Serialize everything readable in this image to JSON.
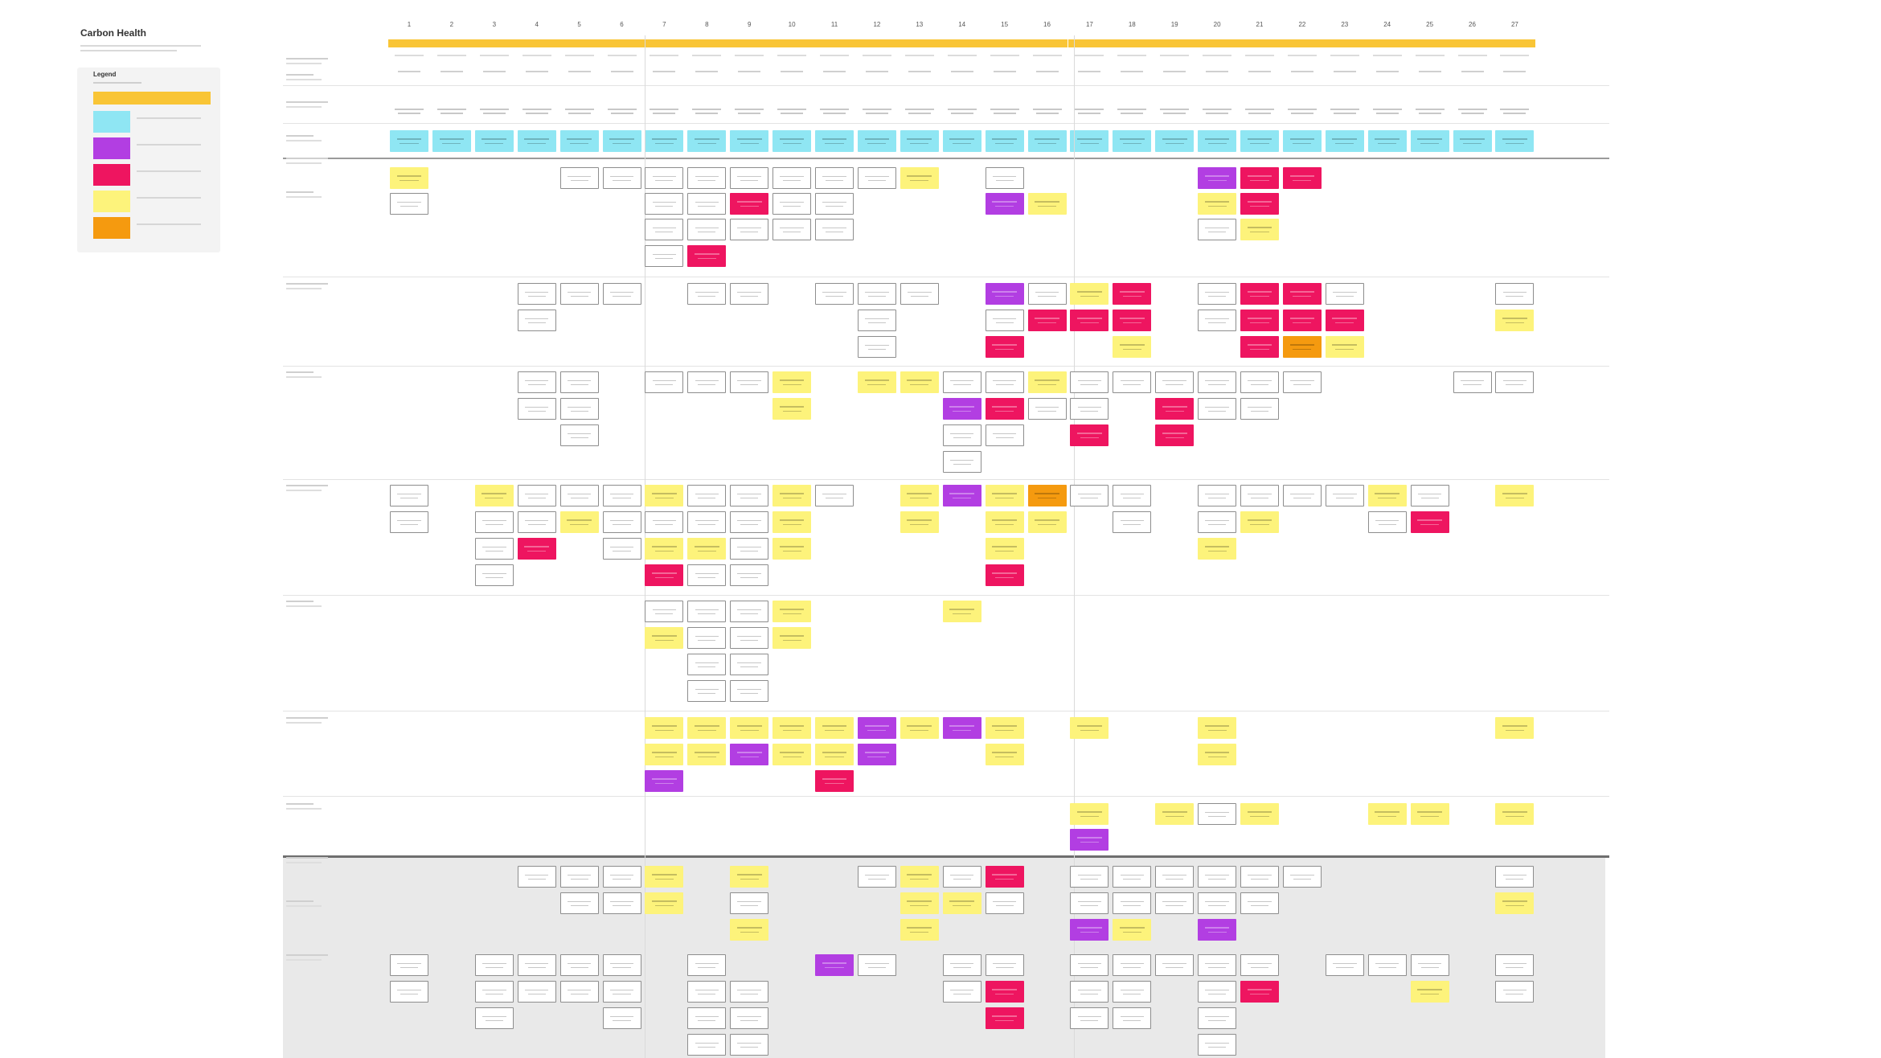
{
  "board": {
    "title": "Carbon Health",
    "legend": {
      "heading": "Legend",
      "items": [
        {
          "name": "phase-marker",
          "color": "#f9c536"
        },
        {
          "name": "step",
          "color": "#8fe6f3"
        },
        {
          "name": "question",
          "color": "#b23ee2"
        },
        {
          "name": "pain-point",
          "color": "#ee1560"
        },
        {
          "name": "opportunity",
          "color": "#fdf37b"
        },
        {
          "name": "idea",
          "color": "#f59a0f"
        }
      ]
    },
    "columns": [
      "1",
      "2",
      "3",
      "4",
      "5",
      "6",
      "7",
      "8",
      "9",
      "10",
      "11",
      "12",
      "13",
      "14",
      "15",
      "16",
      "17",
      "18",
      "19",
      "20",
      "21",
      "22",
      "23",
      "24",
      "25",
      "26",
      "27"
    ],
    "phases": [
      {
        "from": 1,
        "to": 6
      },
      {
        "from": 7,
        "to": 16
      },
      {
        "from": 17,
        "to": 27
      }
    ],
    "colors": {
      "white": "#ffffff",
      "cyan": "#8fe6f3",
      "yellow": "#fdf37b",
      "purple": "#b23ee2",
      "pink": "#ee1560",
      "orange": "#f59a0f",
      "phase": "#f9c536"
    }
  },
  "cards": [
    {
      "c": 1,
      "r": "a",
      "t": "y"
    },
    {
      "c": 1,
      "r": "a2",
      "t": "w"
    },
    {
      "c": 5,
      "r": "a",
      "t": "w"
    },
    {
      "c": 6,
      "r": "a",
      "t": "w"
    },
    {
      "c": 7,
      "r": "a",
      "t": "w"
    },
    {
      "c": 7,
      "r": "a2",
      "t": "w"
    },
    {
      "c": 7,
      "r": "a3",
      "t": "w"
    },
    {
      "c": 7,
      "r": "a4",
      "t": "w"
    },
    {
      "c": 8,
      "r": "a",
      "t": "w"
    },
    {
      "c": 8,
      "r": "a2",
      "t": "w"
    },
    {
      "c": 8,
      "r": "a3",
      "t": "w"
    },
    {
      "c": 8,
      "r": "a4",
      "t": "p"
    },
    {
      "c": 9,
      "r": "a",
      "t": "w"
    },
    {
      "c": 9,
      "r": "a2",
      "t": "p"
    },
    {
      "c": 9,
      "r": "a3",
      "t": "w"
    },
    {
      "c": 10,
      "r": "a",
      "t": "w"
    },
    {
      "c": 10,
      "r": "a2",
      "t": "w"
    },
    {
      "c": 10,
      "r": "a3",
      "t": "w"
    },
    {
      "c": 11,
      "r": "a",
      "t": "w"
    },
    {
      "c": 11,
      "r": "a2",
      "t": "w"
    },
    {
      "c": 11,
      "r": "a3",
      "t": "w"
    },
    {
      "c": 12,
      "r": "a",
      "t": "w"
    },
    {
      "c": 13,
      "r": "a",
      "t": "y"
    },
    {
      "c": 15,
      "r": "a",
      "t": "w"
    },
    {
      "c": 15,
      "r": "a2",
      "t": "u"
    },
    {
      "c": 16,
      "r": "a2",
      "t": "y"
    },
    {
      "c": 20,
      "r": "a",
      "t": "u"
    },
    {
      "c": 20,
      "r": "a2",
      "t": "y"
    },
    {
      "c": 20,
      "r": "a3",
      "t": "w"
    },
    {
      "c": 21,
      "r": "a",
      "t": "p"
    },
    {
      "c": 21,
      "r": "a2",
      "t": "p"
    },
    {
      "c": 21,
      "r": "a3",
      "t": "y"
    },
    {
      "c": 22,
      "r": "a",
      "t": "p"
    },
    {
      "c": 4,
      "r": "b",
      "t": "w"
    },
    {
      "c": 4,
      "r": "b2",
      "t": "w"
    },
    {
      "c": 5,
      "r": "b",
      "t": "w"
    },
    {
      "c": 6,
      "r": "b",
      "t": "w"
    },
    {
      "c": 8,
      "r": "b",
      "t": "w"
    },
    {
      "c": 9,
      "r": "b",
      "t": "w"
    },
    {
      "c": 11,
      "r": "b",
      "t": "w"
    },
    {
      "c": 12,
      "r": "b",
      "t": "w"
    },
    {
      "c": 12,
      "r": "b2",
      "t": "w"
    },
    {
      "c": 12,
      "r": "b3",
      "t": "w"
    },
    {
      "c": 13,
      "r": "b",
      "t": "w"
    },
    {
      "c": 15,
      "r": "b",
      "t": "u"
    },
    {
      "c": 15,
      "r": "b2",
      "t": "w"
    },
    {
      "c": 15,
      "r": "b3",
      "t": "p"
    },
    {
      "c": 16,
      "r": "b",
      "t": "w"
    },
    {
      "c": 16,
      "r": "b2",
      "t": "p"
    },
    {
      "c": 17,
      "r": "b",
      "t": "y"
    },
    {
      "c": 17,
      "r": "b2",
      "t": "p"
    },
    {
      "c": 18,
      "r": "b",
      "t": "p"
    },
    {
      "c": 18,
      "r": "b2",
      "t": "p"
    },
    {
      "c": 18,
      "r": "b3",
      "t": "y"
    },
    {
      "c": 20,
      "r": "b",
      "t": "w"
    },
    {
      "c": 20,
      "r": "b2",
      "t": "w"
    },
    {
      "c": 21,
      "r": "b",
      "t": "p"
    },
    {
      "c": 21,
      "r": "b2",
      "t": "p"
    },
    {
      "c": 21,
      "r": "b3",
      "t": "p"
    },
    {
      "c": 22,
      "r": "b",
      "t": "p"
    },
    {
      "c": 22,
      "r": "b2",
      "t": "p"
    },
    {
      "c": 22,
      "r": "b3",
      "t": "o"
    },
    {
      "c": 23,
      "r": "b",
      "t": "w"
    },
    {
      "c": 23,
      "r": "b2",
      "t": "p"
    },
    {
      "c": 23,
      "r": "b3",
      "t": "y"
    },
    {
      "c": 27,
      "r": "b",
      "t": "w"
    },
    {
      "c": 27,
      "r": "b2",
      "t": "y"
    },
    {
      "c": 4,
      "r": "c",
      "t": "w"
    },
    {
      "c": 4,
      "r": "c2",
      "t": "w"
    },
    {
      "c": 5,
      "r": "c",
      "t": "w"
    },
    {
      "c": 5,
      "r": "c2",
      "t": "w"
    },
    {
      "c": 5,
      "r": "c3",
      "t": "w"
    },
    {
      "c": 7,
      "r": "c",
      "t": "w"
    },
    {
      "c": 8,
      "r": "c",
      "t": "w"
    },
    {
      "c": 9,
      "r": "c",
      "t": "w"
    },
    {
      "c": 10,
      "r": "c",
      "t": "y"
    },
    {
      "c": 10,
      "r": "c2",
      "t": "y"
    },
    {
      "c": 12,
      "r": "c",
      "t": "y"
    },
    {
      "c": 13,
      "r": "c",
      "t": "y"
    },
    {
      "c": 14,
      "r": "c",
      "t": "w"
    },
    {
      "c": 14,
      "r": "c2",
      "t": "u"
    },
    {
      "c": 14,
      "r": "c3",
      "t": "w"
    },
    {
      "c": 14,
      "r": "c4",
      "t": "w"
    },
    {
      "c": 15,
      "r": "c",
      "t": "w"
    },
    {
      "c": 15,
      "r": "c2",
      "t": "p"
    },
    {
      "c": 15,
      "r": "c3",
      "t": "w"
    },
    {
      "c": 16,
      "r": "c",
      "t": "y"
    },
    {
      "c": 16,
      "r": "c2",
      "t": "w"
    },
    {
      "c": 17,
      "r": "c",
      "t": "w"
    },
    {
      "c": 17,
      "r": "c2",
      "t": "w"
    },
    {
      "c": 17,
      "r": "c3",
      "t": "p"
    },
    {
      "c": 18,
      "r": "c",
      "t": "w"
    },
    {
      "c": 19,
      "r": "c",
      "t": "w"
    },
    {
      "c": 19,
      "r": "c2",
      "t": "p"
    },
    {
      "c": 19,
      "r": "c3",
      "t": "p"
    },
    {
      "c": 20,
      "r": "c",
      "t": "w"
    },
    {
      "c": 20,
      "r": "c2",
      "t": "w"
    },
    {
      "c": 21,
      "r": "c",
      "t": "w"
    },
    {
      "c": 21,
      "r": "c2",
      "t": "w"
    },
    {
      "c": 22,
      "r": "c",
      "t": "w"
    },
    {
      "c": 26,
      "r": "c",
      "t": "w"
    },
    {
      "c": 27,
      "r": "c",
      "t": "w"
    },
    {
      "c": 1,
      "r": "d",
      "t": "w"
    },
    {
      "c": 1,
      "r": "d2",
      "t": "w"
    },
    {
      "c": 3,
      "r": "d",
      "t": "y"
    },
    {
      "c": 3,
      "r": "d2",
      "t": "w"
    },
    {
      "c": 3,
      "r": "d3",
      "t": "w"
    },
    {
      "c": 3,
      "r": "d4",
      "t": "w"
    },
    {
      "c": 4,
      "r": "d",
      "t": "w"
    },
    {
      "c": 4,
      "r": "d2",
      "t": "w"
    },
    {
      "c": 4,
      "r": "d3",
      "t": "p"
    },
    {
      "c": 5,
      "r": "d",
      "t": "w"
    },
    {
      "c": 5,
      "r": "d2",
      "t": "y"
    },
    {
      "c": 6,
      "r": "d",
      "t": "w"
    },
    {
      "c": 6,
      "r": "d2",
      "t": "w"
    },
    {
      "c": 6,
      "r": "d3",
      "t": "w"
    },
    {
      "c": 7,
      "r": "d",
      "t": "y"
    },
    {
      "c": 7,
      "r": "d2",
      "t": "w"
    },
    {
      "c": 7,
      "r": "d3",
      "t": "y"
    },
    {
      "c": 7,
      "r": "d4",
      "t": "p"
    },
    {
      "c": 8,
      "r": "d",
      "t": "w"
    },
    {
      "c": 8,
      "r": "d2",
      "t": "w"
    },
    {
      "c": 8,
      "r": "d3",
      "t": "y"
    },
    {
      "c": 8,
      "r": "d4",
      "t": "w"
    },
    {
      "c": 9,
      "r": "d",
      "t": "w"
    },
    {
      "c": 9,
      "r": "d2",
      "t": "w"
    },
    {
      "c": 9,
      "r": "d3",
      "t": "w"
    },
    {
      "c": 9,
      "r": "d4",
      "t": "w"
    },
    {
      "c": 10,
      "r": "d",
      "t": "y"
    },
    {
      "c": 10,
      "r": "d2",
      "t": "y"
    },
    {
      "c": 10,
      "r": "d3",
      "t": "y"
    },
    {
      "c": 11,
      "r": "d",
      "t": "w"
    },
    {
      "c": 13,
      "r": "d",
      "t": "y"
    },
    {
      "c": 13,
      "r": "d2",
      "t": "y"
    },
    {
      "c": 14,
      "r": "d",
      "t": "u"
    },
    {
      "c": 15,
      "r": "d",
      "t": "y"
    },
    {
      "c": 15,
      "r": "d2",
      "t": "y"
    },
    {
      "c": 15,
      "r": "d3",
      "t": "y"
    },
    {
      "c": 15,
      "r": "d4",
      "t": "p"
    },
    {
      "c": 16,
      "r": "d",
      "t": "o"
    },
    {
      "c": 16,
      "r": "d2",
      "t": "y"
    },
    {
      "c": 17,
      "r": "d",
      "t": "w"
    },
    {
      "c": 18,
      "r": "d",
      "t": "w"
    },
    {
      "c": 18,
      "r": "d2",
      "t": "w"
    },
    {
      "c": 20,
      "r": "d",
      "t": "w"
    },
    {
      "c": 20,
      "r": "d2",
      "t": "w"
    },
    {
      "c": 20,
      "r": "d3",
      "t": "y"
    },
    {
      "c": 21,
      "r": "d",
      "t": "w"
    },
    {
      "c": 21,
      "r": "d2",
      "t": "y"
    },
    {
      "c": 22,
      "r": "d",
      "t": "w"
    },
    {
      "c": 23,
      "r": "d",
      "t": "w"
    },
    {
      "c": 24,
      "r": "d",
      "t": "y"
    },
    {
      "c": 24,
      "r": "d2",
      "t": "w"
    },
    {
      "c": 25,
      "r": "d",
      "t": "w"
    },
    {
      "c": 25,
      "r": "d2",
      "t": "p"
    },
    {
      "c": 27,
      "r": "d",
      "t": "y"
    },
    {
      "c": 7,
      "r": "e",
      "t": "w"
    },
    {
      "c": 7,
      "r": "e2",
      "t": "y"
    },
    {
      "c": 8,
      "r": "e",
      "t": "w"
    },
    {
      "c": 8,
      "r": "e2",
      "t": "w"
    },
    {
      "c": 8,
      "r": "e3",
      "t": "w"
    },
    {
      "c": 8,
      "r": "e4",
      "t": "w"
    },
    {
      "c": 9,
      "r": "e",
      "t": "w"
    },
    {
      "c": 9,
      "r": "e2",
      "t": "w"
    },
    {
      "c": 9,
      "r": "e3",
      "t": "w"
    },
    {
      "c": 9,
      "r": "e4",
      "t": "w"
    },
    {
      "c": 10,
      "r": "e",
      "t": "y"
    },
    {
      "c": 10,
      "r": "e2",
      "t": "y"
    },
    {
      "c": 14,
      "r": "e",
      "t": "y"
    },
    {
      "c": 7,
      "r": "f",
      "t": "y"
    },
    {
      "c": 7,
      "r": "f2",
      "t": "y"
    },
    {
      "c": 7,
      "r": "f3",
      "t": "u"
    },
    {
      "c": 8,
      "r": "f",
      "t": "y"
    },
    {
      "c": 8,
      "r": "f2",
      "t": "y"
    },
    {
      "c": 9,
      "r": "f",
      "t": "y"
    },
    {
      "c": 9,
      "r": "f2",
      "t": "u"
    },
    {
      "c": 10,
      "r": "f",
      "t": "y"
    },
    {
      "c": 10,
      "r": "f2",
      "t": "y"
    },
    {
      "c": 11,
      "r": "f",
      "t": "y"
    },
    {
      "c": 11,
      "r": "f2",
      "t": "y"
    },
    {
      "c": 11,
      "r": "f3",
      "t": "p"
    },
    {
      "c": 12,
      "r": "f",
      "t": "u"
    },
    {
      "c": 12,
      "r": "f2",
      "t": "u"
    },
    {
      "c": 13,
      "r": "f",
      "t": "y"
    },
    {
      "c": 14,
      "r": "f",
      "t": "u"
    },
    {
      "c": 15,
      "r": "f",
      "t": "y"
    },
    {
      "c": 15,
      "r": "f2",
      "t": "y"
    },
    {
      "c": 17,
      "r": "f",
      "t": "y"
    },
    {
      "c": 20,
      "r": "f",
      "t": "y"
    },
    {
      "c": 20,
      "r": "f2",
      "t": "y"
    },
    {
      "c": 27,
      "r": "f",
      "t": "y"
    },
    {
      "c": 17,
      "r": "g",
      "t": "y"
    },
    {
      "c": 17,
      "r": "g2",
      "t": "u"
    },
    {
      "c": 19,
      "r": "g",
      "t": "y"
    },
    {
      "c": 20,
      "r": "g",
      "t": "w"
    },
    {
      "c": 21,
      "r": "g",
      "t": "y"
    },
    {
      "c": 24,
      "r": "g",
      "t": "y"
    },
    {
      "c": 25,
      "r": "g",
      "t": "y"
    },
    {
      "c": 27,
      "r": "g",
      "t": "y"
    },
    {
      "c": 4,
      "r": "h",
      "t": "w"
    },
    {
      "c": 5,
      "r": "h",
      "t": "w"
    },
    {
      "c": 5,
      "r": "h2",
      "t": "w"
    },
    {
      "c": 6,
      "r": "h",
      "t": "w"
    },
    {
      "c": 6,
      "r": "h2",
      "t": "w"
    },
    {
      "c": 7,
      "r": "h",
      "t": "y"
    },
    {
      "c": 7,
      "r": "h2",
      "t": "y"
    },
    {
      "c": 9,
      "r": "h",
      "t": "y"
    },
    {
      "c": 9,
      "r": "h2",
      "t": "w"
    },
    {
      "c": 9,
      "r": "h3",
      "t": "y"
    },
    {
      "c": 12,
      "r": "h",
      "t": "w"
    },
    {
      "c": 13,
      "r": "h",
      "t": "y"
    },
    {
      "c": 13,
      "r": "h2",
      "t": "y"
    },
    {
      "c": 13,
      "r": "h3",
      "t": "y"
    },
    {
      "c": 14,
      "r": "h",
      "t": "w"
    },
    {
      "c": 14,
      "r": "h2",
      "t": "y"
    },
    {
      "c": 15,
      "r": "h",
      "t": "p"
    },
    {
      "c": 15,
      "r": "h2",
      "t": "w"
    },
    {
      "c": 17,
      "r": "h",
      "t": "w"
    },
    {
      "c": 17,
      "r": "h2",
      "t": "w"
    },
    {
      "c": 17,
      "r": "h3",
      "t": "u"
    },
    {
      "c": 18,
      "r": "h",
      "t": "w"
    },
    {
      "c": 18,
      "r": "h2",
      "t": "w"
    },
    {
      "c": 18,
      "r": "h3",
      "t": "y"
    },
    {
      "c": 19,
      "r": "h",
      "t": "w"
    },
    {
      "c": 19,
      "r": "h2",
      "t": "w"
    },
    {
      "c": 20,
      "r": "h",
      "t": "w"
    },
    {
      "c": 20,
      "r": "h2",
      "t": "w"
    },
    {
      "c": 20,
      "r": "h3",
      "t": "u"
    },
    {
      "c": 21,
      "r": "h",
      "t": "w"
    },
    {
      "c": 21,
      "r": "h2",
      "t": "w"
    },
    {
      "c": 22,
      "r": "h",
      "t": "w"
    },
    {
      "c": 27,
      "r": "h",
      "t": "w"
    },
    {
      "c": 27,
      "r": "h2",
      "t": "y"
    },
    {
      "c": 1,
      "r": "i",
      "t": "w"
    },
    {
      "c": 1,
      "r": "i2",
      "t": "w"
    },
    {
      "c": 3,
      "r": "i",
      "t": "w"
    },
    {
      "c": 3,
      "r": "i2",
      "t": "w"
    },
    {
      "c": 3,
      "r": "i3",
      "t": "w"
    },
    {
      "c": 4,
      "r": "i",
      "t": "w"
    },
    {
      "c": 4,
      "r": "i2",
      "t": "w"
    },
    {
      "c": 5,
      "r": "i",
      "t": "w"
    },
    {
      "c": 5,
      "r": "i2",
      "t": "w"
    },
    {
      "c": 6,
      "r": "i",
      "t": "w"
    },
    {
      "c": 6,
      "r": "i2",
      "t": "w"
    },
    {
      "c": 6,
      "r": "i3",
      "t": "w"
    },
    {
      "c": 8,
      "r": "i",
      "t": "w"
    },
    {
      "c": 8,
      "r": "i2",
      "t": "w"
    },
    {
      "c": 8,
      "r": "i3",
      "t": "w"
    },
    {
      "c": 8,
      "r": "i4",
      "t": "w"
    },
    {
      "c": 9,
      "r": "i2",
      "t": "w"
    },
    {
      "c": 9,
      "r": "i3",
      "t": "w"
    },
    {
      "c": 9,
      "r": "i4",
      "t": "w"
    },
    {
      "c": 11,
      "r": "i",
      "t": "u"
    },
    {
      "c": 12,
      "r": "i",
      "t": "w"
    },
    {
      "c": 14,
      "r": "i",
      "t": "w"
    },
    {
      "c": 14,
      "r": "i2",
      "t": "w"
    },
    {
      "c": 15,
      "r": "i",
      "t": "w"
    },
    {
      "c": 15,
      "r": "i2",
      "t": "p"
    },
    {
      "c": 15,
      "r": "i3",
      "t": "p"
    },
    {
      "c": 17,
      "r": "i",
      "t": "w"
    },
    {
      "c": 17,
      "r": "i2",
      "t": "w"
    },
    {
      "c": 17,
      "r": "i3",
      "t": "w"
    },
    {
      "c": 18,
      "r": "i",
      "t": "w"
    },
    {
      "c": 18,
      "r": "i2",
      "t": "w"
    },
    {
      "c": 18,
      "r": "i3",
      "t": "w"
    },
    {
      "c": 19,
      "r": "i",
      "t": "w"
    },
    {
      "c": 20,
      "r": "i",
      "t": "w"
    },
    {
      "c": 20,
      "r": "i2",
      "t": "w"
    },
    {
      "c": 20,
      "r": "i3",
      "t": "w"
    },
    {
      "c": 20,
      "r": "i4",
      "t": "w"
    },
    {
      "c": 21,
      "r": "i",
      "t": "w"
    },
    {
      "c": 21,
      "r": "i2",
      "t": "p"
    },
    {
      "c": 23,
      "r": "i",
      "t": "w"
    },
    {
      "c": 24,
      "r": "i",
      "t": "w"
    },
    {
      "c": 25,
      "r": "i",
      "t": "w"
    },
    {
      "c": 25,
      "r": "i2",
      "t": "y"
    },
    {
      "c": 27,
      "r": "i",
      "t": "w"
    },
    {
      "c": 27,
      "r": "i2",
      "t": "w"
    }
  ]
}
